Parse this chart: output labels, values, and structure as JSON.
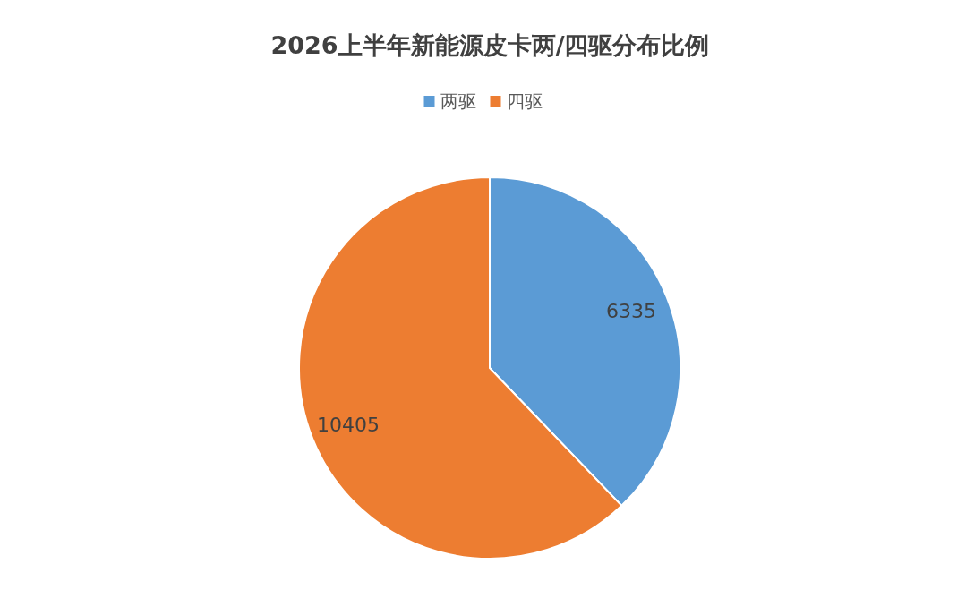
{
  "chart_data": {
    "type": "pie",
    "title": "2026上半年新能源皮卡两/四驱分布比例",
    "categories": [
      "两驱",
      "四驱"
    ],
    "values": [
      6335,
      10405
    ],
    "colors": [
      "#5b9bd5",
      "#ed7d31"
    ],
    "data_labels": true,
    "legend": "top"
  }
}
